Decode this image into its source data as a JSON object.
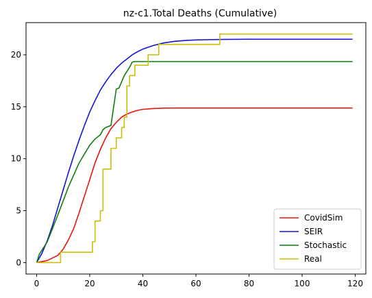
{
  "chart_data": {
    "type": "line",
    "title": "nz-c1.Total Deaths (Cumulative)",
    "xlabel": "",
    "ylabel": "",
    "xlim": [
      -4,
      124
    ],
    "ylim": [
      -1.1,
      23.1
    ],
    "xticks": [
      0,
      20,
      40,
      60,
      80,
      100,
      120
    ],
    "yticks": [
      0,
      5,
      10,
      15,
      20
    ],
    "grid": false,
    "legend_position": "lower-right",
    "series": [
      {
        "name": "CovidSim",
        "color": "#e8120c",
        "step": false,
        "x": [
          0,
          4,
          8,
          10,
          12,
          14,
          16,
          18,
          20,
          22,
          24,
          26,
          28,
          30,
          32,
          34,
          36,
          38,
          40,
          44,
          48,
          52,
          56,
          60,
          70,
          80,
          90,
          100,
          110,
          119
        ],
        "y": [
          0,
          0.2,
          0.7,
          1.3,
          2.2,
          3.3,
          4.8,
          6.4,
          8.0,
          9.6,
          10.9,
          12.0,
          12.9,
          13.5,
          14.0,
          14.3,
          14.5,
          14.65,
          14.75,
          14.83,
          14.87,
          14.88,
          14.88,
          14.88,
          14.88,
          14.88,
          14.88,
          14.88,
          14.88,
          14.88
        ]
      },
      {
        "name": "SEIR",
        "color": "#1212d6",
        "step": false,
        "x": [
          0,
          2,
          4,
          6,
          8,
          10,
          12,
          14,
          16,
          18,
          20,
          22,
          24,
          26,
          28,
          30,
          32,
          34,
          36,
          38,
          40,
          44,
          48,
          52,
          56,
          60,
          65,
          70,
          80,
          90,
          100,
          110,
          119
        ],
        "y": [
          0,
          0.9,
          2.1,
          3.6,
          5.3,
          7.0,
          8.7,
          10.3,
          11.8,
          13.2,
          14.5,
          15.6,
          16.6,
          17.4,
          18.1,
          18.7,
          19.2,
          19.6,
          20.0,
          20.3,
          20.55,
          20.9,
          21.15,
          21.3,
          21.38,
          21.43,
          21.46,
          21.48,
          21.5,
          21.5,
          21.5,
          21.5,
          21.5
        ]
      },
      {
        "name": "Stochastic",
        "color": "#0c7d0c",
        "step": false,
        "x": [
          0,
          1,
          4,
          8,
          12,
          16,
          20,
          22,
          24,
          25,
          26,
          27,
          28,
          29,
          30,
          31,
          32,
          33,
          34,
          35,
          36,
          37,
          40,
          50,
          60,
          70,
          80,
          90,
          100,
          110,
          119
        ],
        "y": [
          0,
          0.8,
          2.0,
          4.6,
          7.3,
          9.6,
          11.3,
          11.9,
          12.3,
          12.8,
          13.0,
          13.1,
          13.2,
          15.0,
          16.7,
          16.8,
          17.4,
          18.0,
          18.4,
          18.8,
          19.3,
          19.35,
          19.35,
          19.35,
          19.35,
          19.35,
          19.35,
          19.35,
          19.35,
          19.35,
          19.35
        ]
      },
      {
        "name": "Real",
        "color": "#cbbd08",
        "step": true,
        "x": [
          0,
          8,
          9,
          20,
          21,
          22,
          23,
          24,
          25,
          26,
          27,
          28,
          29,
          30,
          31,
          32,
          33,
          34,
          35,
          36,
          37,
          41,
          42,
          46,
          68,
          69,
          119
        ],
        "y": [
          0,
          0,
          1,
          1,
          2,
          4,
          4,
          5,
          9,
          9,
          9,
          11,
          11,
          12,
          12,
          13,
          14,
          17,
          18,
          18,
          19,
          19,
          20,
          21,
          21,
          22,
          22
        ]
      }
    ]
  }
}
